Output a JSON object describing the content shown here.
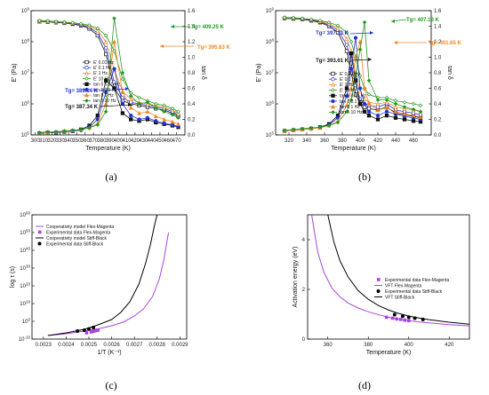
{
  "chart_data": [
    {
      "panel": "a",
      "type": "line",
      "caption": "(a)",
      "xlabel": "Temperature (K)",
      "ylabel_left": "E' (Pa)",
      "ylabel_right": "tan δ",
      "xlim": [
        295,
        480
      ],
      "xticks": [
        300,
        310,
        320,
        330,
        340,
        350,
        360,
        370,
        380,
        390,
        400,
        410,
        420,
        430,
        440,
        450,
        460,
        470
      ],
      "ylim_left_log10": [
        5,
        9
      ],
      "ylim_right": [
        0,
        1.6
      ],
      "yticks_right": [
        "0.0",
        "0.2",
        "0.4",
        "0.6",
        "0.8",
        "1.0",
        "1.2",
        "1.4",
        "1.6"
      ],
      "legend": [
        "E' 0.01 Hz",
        "E' 0.1 Hz",
        "E' 1 Hz",
        "E' 10 Hz",
        "tan δ 0.01 Hz",
        "tan δ 0.1 Hz",
        "tan δ 1 Hz",
        "tan δ 10 Hz"
      ],
      "colors": {
        "0.01 Hz": "#111111",
        "0.1 Hz": "#2233cc",
        "1 Hz": "#ee8822",
        "10 Hz": "#229922"
      },
      "x": [
        305,
        315,
        325,
        335,
        345,
        355,
        365,
        375,
        385,
        395,
        405,
        415,
        425,
        435,
        445,
        455,
        465,
        472
      ],
      "series_storage_log10": [
        {
          "name": "E' 0.01 Hz",
          "values": [
            8.65,
            8.64,
            8.62,
            8.6,
            8.57,
            8.52,
            8.42,
            8.2,
            7.6,
            6.5,
            6.1,
            6.0,
            5.95,
            5.9,
            5.85,
            5.8,
            5.7,
            5.6
          ]
        },
        {
          "name": "E' 0.1 Hz",
          "values": [
            8.66,
            8.65,
            8.63,
            8.61,
            8.58,
            8.54,
            8.46,
            8.28,
            7.8,
            6.7,
            6.2,
            6.05,
            6.0,
            5.95,
            5.9,
            5.85,
            5.75,
            5.65
          ]
        },
        {
          "name": "E' 1 Hz",
          "values": [
            8.67,
            8.66,
            8.64,
            8.62,
            8.6,
            8.56,
            8.5,
            8.36,
            8.0,
            7.1,
            6.4,
            6.15,
            6.05,
            6.0,
            5.95,
            5.9,
            5.8,
            5.7
          ]
        },
        {
          "name": "E' 10 Hz",
          "values": [
            8.68,
            8.67,
            8.65,
            8.63,
            8.61,
            8.58,
            8.53,
            8.43,
            8.2,
            7.7,
            6.8,
            6.35,
            6.2,
            6.1,
            6.0,
            5.95,
            5.85,
            5.75
          ]
        }
      ],
      "series_tand": [
        {
          "name": "tan δ 0.01 Hz",
          "values": [
            0.02,
            0.03,
            0.03,
            0.04,
            0.05,
            0.07,
            0.12,
            0.25,
            0.7,
            0.6,
            0.28,
            0.2,
            0.18,
            0.2,
            0.16,
            0.14,
            0.12,
            0.1
          ]
        },
        {
          "name": "tan δ 0.1 Hz",
          "values": [
            0.02,
            0.03,
            0.03,
            0.04,
            0.05,
            0.06,
            0.1,
            0.2,
            0.55,
            0.85,
            0.4,
            0.25,
            0.2,
            0.22,
            0.18,
            0.15,
            0.13,
            0.11
          ]
        },
        {
          "name": "tan δ 1 Hz",
          "values": [
            0.03,
            0.03,
            0.04,
            0.05,
            0.06,
            0.07,
            0.09,
            0.15,
            0.4,
            1.2,
            0.55,
            0.35,
            0.28,
            0.3,
            0.24,
            0.2,
            0.17,
            0.14
          ]
        },
        {
          "name": "tan δ 10 Hz",
          "values": [
            0.03,
            0.04,
            0.04,
            0.05,
            0.06,
            0.07,
            0.09,
            0.13,
            0.3,
            1.5,
            0.8,
            0.5,
            0.4,
            0.42,
            0.35,
            0.3,
            0.26,
            0.22
          ]
        }
      ],
      "annotations": [
        {
          "text": "Tg= 409.25 K",
          "color": "#229922"
        },
        {
          "text": "Tg= 395.83 K",
          "color": "#ee8822"
        },
        {
          "text": "Tg= 389.14 K",
          "color": "#2233cc"
        },
        {
          "text": "Tg= 387.34 K",
          "color": "#111111"
        }
      ]
    },
    {
      "panel": "b",
      "type": "line",
      "caption": "(b)",
      "xlabel": "Temperature (K)",
      "ylabel_left": "E' (Pa)",
      "ylabel_right": "tan δ",
      "xlim": [
        305,
        480
      ],
      "xticks": [
        320,
        340,
        360,
        380,
        400,
        420,
        440,
        460
      ],
      "ylim_left_log10": [
        5,
        9
      ],
      "ylim_right": [
        0,
        1.6
      ],
      "yticks_right": [
        "0.0",
        "0.2",
        "0.4",
        "0.6",
        "0.8",
        "1.0",
        "1.2",
        "1.4",
        "1.6"
      ],
      "legend": [
        "E' 0.01 Hz",
        "E' 0.1 Hz",
        "E' 1 Hz",
        "E' 10 Hz",
        "tan δ 0.01 Hz",
        "tan δ 0.1 Hz",
        "tan δ 1 Hz",
        "tan δ 10 Hz"
      ],
      "x": [
        315,
        325,
        335,
        345,
        355,
        365,
        375,
        385,
        390,
        395,
        400,
        405,
        410,
        420,
        430,
        440,
        450,
        460,
        468
      ],
      "series_storage_log10": [
        {
          "name": "E' 0.01 Hz",
          "values": [
            8.75,
            8.74,
            8.72,
            8.68,
            8.62,
            8.5,
            8.3,
            7.7,
            7.0,
            6.3,
            6.0,
            5.9,
            5.85,
            5.8,
            5.9,
            5.7,
            5.65,
            5.6,
            5.55
          ]
        },
        {
          "name": "E' 0.1 Hz",
          "values": [
            8.76,
            8.75,
            8.73,
            8.7,
            8.64,
            8.54,
            8.38,
            7.9,
            7.3,
            6.6,
            6.15,
            6.0,
            5.95,
            5.9,
            6.0,
            5.8,
            5.75,
            5.7,
            5.65
          ]
        },
        {
          "name": "E' 1 Hz",
          "values": [
            8.77,
            8.76,
            8.74,
            8.71,
            8.66,
            8.58,
            8.45,
            8.1,
            7.7,
            7.0,
            6.4,
            6.15,
            6.05,
            6.0,
            6.05,
            5.9,
            5.85,
            5.8,
            5.75
          ]
        },
        {
          "name": "E' 10 Hz",
          "values": [
            8.78,
            8.77,
            8.75,
            8.72,
            8.68,
            8.62,
            8.52,
            8.3,
            8.0,
            7.5,
            6.9,
            6.5,
            6.3,
            6.2,
            6.2,
            6.1,
            6.05,
            6.0,
            5.95
          ]
        }
      ],
      "series_tand": [
        {
          "name": "tan δ 0.01 Hz",
          "values": [
            0.05,
            0.06,
            0.07,
            0.08,
            0.1,
            0.14,
            0.25,
            0.6,
            1.05,
            0.7,
            0.4,
            0.3,
            0.25,
            0.2,
            0.25,
            0.22,
            0.2,
            0.18,
            0.17
          ]
        },
        {
          "name": "tan δ 0.1 Hz",
          "values": [
            0.05,
            0.06,
            0.07,
            0.08,
            0.1,
            0.13,
            0.22,
            0.5,
            0.85,
            1.25,
            0.6,
            0.4,
            0.3,
            0.25,
            0.3,
            0.27,
            0.24,
            0.22,
            0.2
          ]
        },
        {
          "name": "tan δ 1 Hz",
          "values": [
            0.05,
            0.06,
            0.07,
            0.08,
            0.09,
            0.12,
            0.18,
            0.38,
            0.6,
            1.0,
            1.2,
            0.6,
            0.4,
            0.32,
            0.35,
            0.3,
            0.27,
            0.25,
            0.23
          ]
        },
        {
          "name": "tan δ 10 Hz",
          "values": [
            0.06,
            0.07,
            0.08,
            0.09,
            0.1,
            0.12,
            0.16,
            0.3,
            0.45,
            0.75,
            1.1,
            1.45,
            0.7,
            0.45,
            0.45,
            0.4,
            0.36,
            0.33,
            0.3
          ]
        }
      ],
      "annotations": [
        {
          "text": "Tg= 407.18 K",
          "color": "#229922"
        },
        {
          "text": "Tg= 401.65 K",
          "color": "#ee8822"
        },
        {
          "text": "Tg= 397.33 K",
          "color": "#2233cc"
        },
        {
          "text": "Tg= 393.61 K",
          "color": "#111111"
        }
      ]
    },
    {
      "panel": "c",
      "type": "line",
      "caption": "(c)",
      "xlabel": "1/T (K⁻¹)",
      "ylabel": "log τ (s)",
      "xlim": [
        0.00225,
        0.00293
      ],
      "xticks": [
        "0.0023",
        "0.0024",
        "0.0025",
        "0.0026",
        "0.0027",
        "0.0028",
        "0.0029"
      ],
      "ylim_log10": [
        -10,
        60
      ],
      "yticks": [
        "10-10",
        "100",
        "1010",
        "1020",
        "1030",
        "1040",
        "1050",
        "1060"
      ],
      "legend": [
        "Cooperativity model Flex-Magenta",
        "Experimental data Flex-Magenta",
        "Cooperativity model Stiff-Black",
        "Experimental data Stiff-Black"
      ],
      "colors": {
        "Flex-Magenta": "#aa44dd",
        "Stiff-Black": "#000000"
      },
      "series": [
        {
          "name": "Cooperativity model Flex-Magenta",
          "x": [
            0.00232,
            0.0024,
            0.00248,
            0.00255,
            0.0026,
            0.00265,
            0.0027,
            0.00274,
            0.00278,
            0.00281,
            0.00283,
            0.00285
          ],
          "y": [
            -8,
            -7,
            -5.5,
            -4,
            -2.5,
            -0.5,
            3,
            7,
            14,
            24,
            35,
            50
          ]
        },
        {
          "name": "Experimental data Flex-Magenta",
          "x": [
            0.00249,
            0.00251,
            0.00252,
            0.00253,
            0.00254
          ],
          "y": [
            -6.5,
            -6,
            -5.7,
            -5.3,
            -5.0
          ]
        },
        {
          "name": "Cooperativity model Stiff-Black",
          "x": [
            0.00232,
            0.0024,
            0.00248,
            0.00254,
            0.0026,
            0.00264,
            0.00268,
            0.00272,
            0.00275,
            0.00277,
            0.00279,
            0.0028
          ],
          "y": [
            -8,
            -6.5,
            -4.5,
            -2,
            1,
            5,
            11,
            21,
            33,
            43,
            55,
            60
          ]
        },
        {
          "name": "Experimental data Stiff-Black",
          "x": [
            0.00245,
            0.00248,
            0.0025,
            0.00252
          ],
          "y": [
            -5.5,
            -5,
            -4.3,
            -3.5
          ]
        }
      ]
    },
    {
      "panel": "d",
      "type": "line",
      "caption": "(d)",
      "xlabel": "Temperature (K)",
      "ylabel": "Activation energy (eV)",
      "xlim": [
        350,
        430
      ],
      "xticks": [
        360,
        380,
        400,
        420
      ],
      "ylim": [
        0,
        5
      ],
      "yticks": [
        0,
        2,
        4
      ],
      "legend": [
        "Experimental data Flex-Magenta",
        "VFT Flex-Magenta",
        "Experimental data Stiff-Black",
        "VFT Stiff-Black"
      ],
      "colors": {
        "Flex-Magenta": "#aa44dd",
        "Stiff-Black": "#000000"
      },
      "series": [
        {
          "name": "VFT Flex-Magenta",
          "x": [
            352,
            355,
            358,
            362,
            366,
            370,
            375,
            380,
            385,
            390,
            395,
            400,
            405,
            410,
            420,
            430
          ],
          "y": [
            5,
            3.5,
            2.7,
            2.05,
            1.7,
            1.45,
            1.25,
            1.1,
            0.98,
            0.88,
            0.8,
            0.74,
            0.69,
            0.65,
            0.58,
            0.53
          ]
        },
        {
          "name": "Experimental data Flex-Magenta",
          "x": [
            389,
            392,
            394,
            396,
            398,
            400
          ],
          "y": [
            0.88,
            0.84,
            0.81,
            0.79,
            0.76,
            0.74
          ]
        },
        {
          "name": "VFT Stiff-Black",
          "x": [
            360,
            363,
            366,
            370,
            375,
            380,
            385,
            390,
            395,
            400,
            405,
            410,
            420,
            430
          ],
          "y": [
            5,
            3.9,
            3.15,
            2.5,
            1.95,
            1.6,
            1.35,
            1.17,
            1.03,
            0.93,
            0.85,
            0.78,
            0.68,
            0.6
          ]
        },
        {
          "name": "Experimental data Stiff-Black",
          "x": [
            393,
            397,
            400,
            403,
            407
          ],
          "y": [
            0.98,
            0.92,
            0.88,
            0.84,
            0.79
          ]
        }
      ]
    }
  ]
}
